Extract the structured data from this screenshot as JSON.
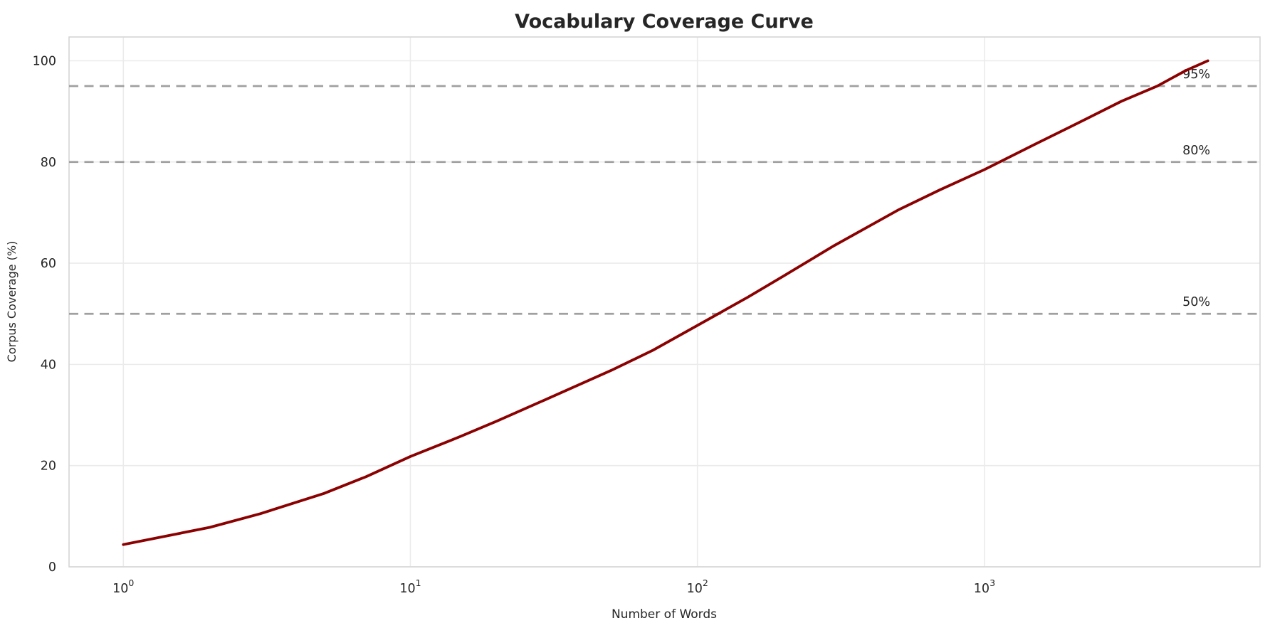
{
  "chart_data": {
    "type": "line",
    "title": "Vocabulary Coverage Curve",
    "xlabel": "Number of Words",
    "ylabel": "Corpus Coverage (%)",
    "x_scale": "log",
    "xlim": [
      0.647,
      9120
    ],
    "ylim": [
      0,
      104.7
    ],
    "grid": true,
    "legend": "none",
    "x_ticks": [
      {
        "value": 1,
        "base": "10",
        "exp": "0"
      },
      {
        "value": 10,
        "base": "10",
        "exp": "1"
      },
      {
        "value": 100,
        "base": "10",
        "exp": "2"
      },
      {
        "value": 1000,
        "base": "10",
        "exp": "3"
      }
    ],
    "y_ticks": [
      0,
      20,
      40,
      60,
      80,
      100
    ],
    "series": [
      {
        "name": "vocabulary-coverage",
        "color": "#8b0000",
        "x": [
          1,
          2,
          3,
          5,
          7,
          10,
          15,
          20,
          30,
          50,
          70,
          100,
          150,
          200,
          300,
          500,
          700,
          1000,
          1500,
          2000,
          3000,
          4000,
          5000,
          6000
        ],
        "y": [
          4.4,
          7.8,
          10.5,
          14.5,
          17.8,
          21.8,
          25.8,
          28.8,
          33.2,
          38.8,
          42.8,
          47.7,
          53.3,
          57.5,
          63.5,
          70.5,
          74.5,
          78.5,
          83.5,
          87.0,
          92.0,
          95.0,
          98.0,
          100.0
        ]
      }
    ],
    "reference_lines": [
      {
        "value": 50,
        "label": "50%"
      },
      {
        "value": 80,
        "label": "80%"
      },
      {
        "value": 95,
        "label": "95%"
      }
    ],
    "colors": {
      "line": "#8b0000",
      "reference": "#a0a0a0",
      "grid": "#ebebeb",
      "spine": "#d5d5d5",
      "text": "#262626"
    }
  }
}
